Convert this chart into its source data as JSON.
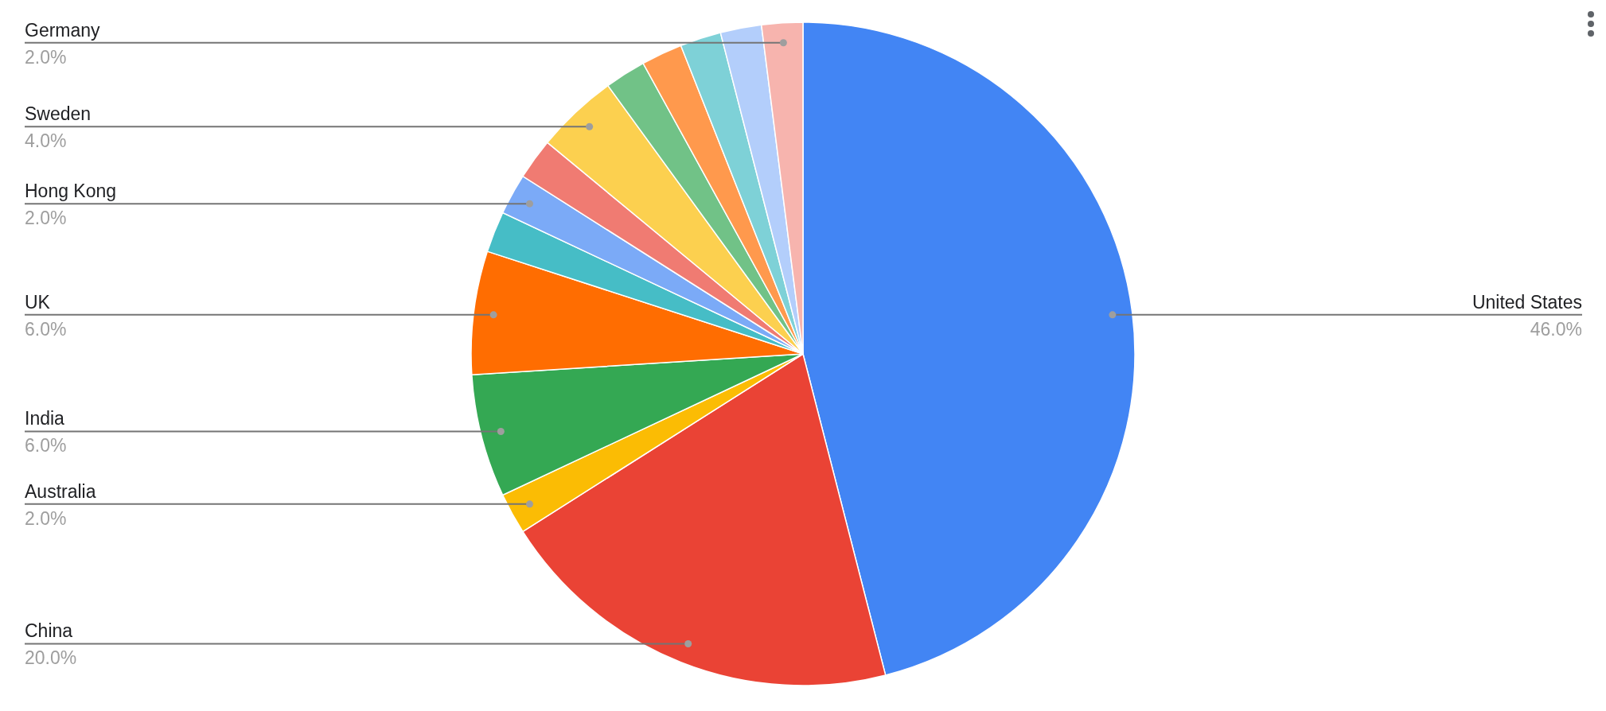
{
  "chart_data": {
    "type": "pie",
    "categories": [
      "United States",
      "China",
      "Australia",
      "India",
      "UK",
      null,
      "Hong Kong",
      null,
      "Sweden",
      null,
      null,
      null,
      null,
      "Germany"
    ],
    "values": [
      46,
      20,
      2,
      6,
      6,
      2,
      2,
      2,
      4,
      2,
      2,
      2,
      2,
      2
    ],
    "value_labels": [
      "46.0%",
      "20.0%",
      "2.0%",
      "6.0%",
      "6.0%",
      null,
      "2.0%",
      null,
      "4.0%",
      null,
      null,
      null,
      null,
      "2.0%"
    ],
    "colors": [
      "#4285f4",
      "#ea4335",
      "#fbbc04",
      "#34a853",
      "#ff6d01",
      "#46bdc6",
      "#7baaf7",
      "#f07b72",
      "#fcd04f",
      "#71c287",
      "#ff994d",
      "#7ed1d7",
      "#b3cefb",
      "#f7b4ae"
    ],
    "legend": false
  }
}
